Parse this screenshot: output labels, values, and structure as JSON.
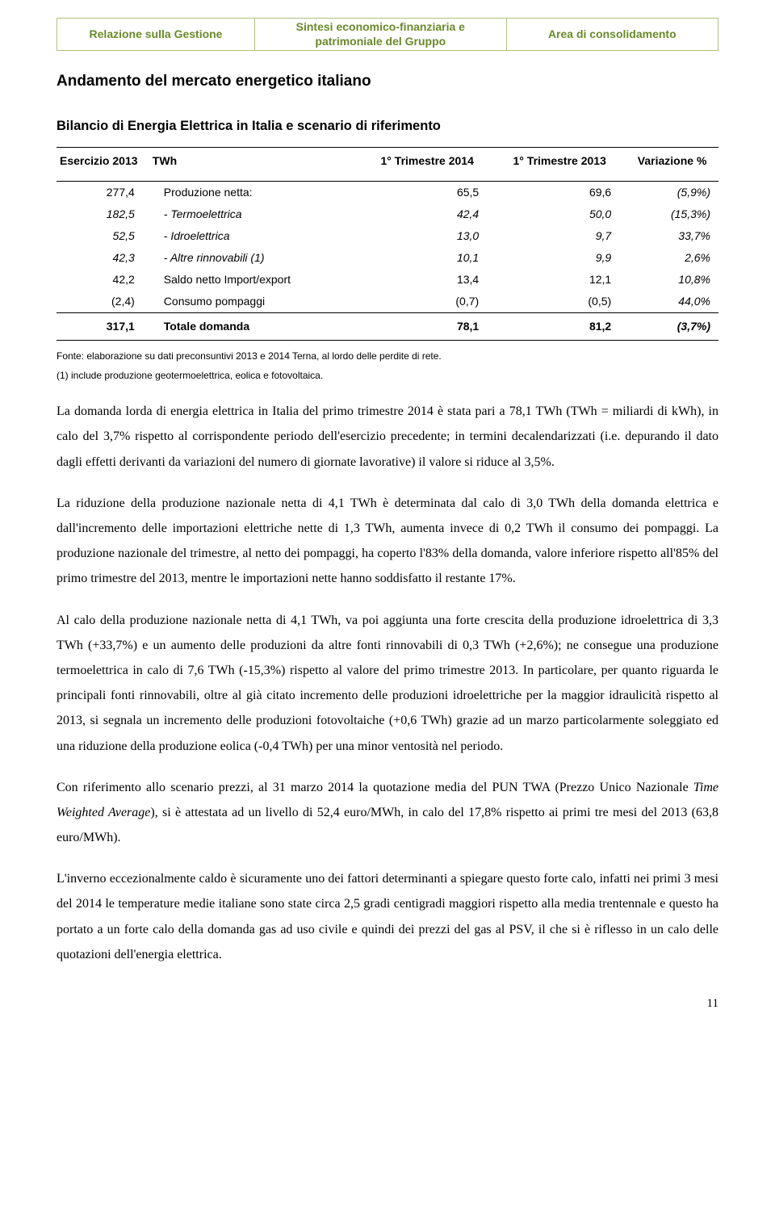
{
  "header": {
    "tabs": [
      "Relazione sulla Gestione",
      "Sintesi economico-finanziaria e patrimoniale del Gruppo",
      "Area di consolidamento"
    ]
  },
  "titles": {
    "section": "Andamento del mercato energetico italiano",
    "sub": "Bilancio di Energia Elettrica in Italia e scenario di riferimento"
  },
  "table": {
    "headers": {
      "c0": "Esercizio 2013",
      "c1": "TWh",
      "c2": "1° Trimestre 2014",
      "c3": "1° Trimestre 2013",
      "c4": "Variazione %"
    },
    "rows": [
      {
        "e": "277,4",
        "label": "Produzione netta:",
        "a": "65,5",
        "b": "69,6",
        "v": "(5,9%)"
      },
      {
        "e": "182,5",
        "label": "- Termoelettrica",
        "a": "42,4",
        "b": "50,0",
        "v": "(15,3%)",
        "italic": true
      },
      {
        "e": "52,5",
        "label": "- Idroelettrica",
        "a": "13,0",
        "b": "9,7",
        "v": "33,7%",
        "italic": true
      },
      {
        "e": "42,3",
        "label": "- Altre rinnovabili (1)",
        "a": "10,1",
        "b": "9,9",
        "v": "2,6%",
        "italic": true
      },
      {
        "e": "42,2",
        "label": "Saldo netto Import/export",
        "a": "13,4",
        "b": "12,1",
        "v": "10,8%"
      },
      {
        "e": "(2,4)",
        "label": "Consumo pompaggi",
        "a": "(0,7)",
        "b": "(0,5)",
        "v": "44,0%"
      }
    ],
    "total": {
      "e": "317,1",
      "label": "Totale domanda",
      "a": "78,1",
      "b": "81,2",
      "v": "(3,7%)"
    }
  },
  "footnotes": {
    "f1": "Fonte: elaborazione su dati preconsuntivi 2013 e 2014 Terna, al lordo delle perdite di rete.",
    "f2": "(1) include produzione geotermoelettrica, eolica e fotovoltaica."
  },
  "paragraphs": {
    "p1": "La domanda lorda di energia elettrica in Italia del primo trimestre 2014 è stata pari a 78,1 TWh (TWh = miliardi di kWh), in calo del 3,7% rispetto al corrispondente periodo dell'esercizio precedente; in termini decalendarizzati (i.e. depurando il dato dagli effetti derivanti da variazioni del numero di giornate lavorative) il valore si riduce al 3,5%.",
    "p2": "La riduzione della produzione nazionale netta di 4,1 TWh è determinata dal calo di 3,0 TWh della domanda elettrica e dall'incremento delle importazioni elettriche nette di 1,3 TWh, aumenta invece di 0,2 TWh il consumo dei pompaggi. La produzione nazionale del trimestre, al netto dei pompaggi, ha coperto l'83% della domanda, valore inferiore rispetto all'85% del primo trimestre del 2013, mentre le importazioni nette hanno soddisfatto il restante 17%.",
    "p3": "Al calo della produzione nazionale netta di 4,1 TWh, va poi aggiunta una forte crescita della produzione idroelettrica di 3,3 TWh (+33,7%) e un aumento delle produzioni da altre fonti rinnovabili di 0,3 TWh (+2,6%); ne consegue una produzione termoelettrica in calo di 7,6 TWh (-15,3%) rispetto al valore del primo trimestre 2013. In particolare, per quanto riguarda le principali fonti rinnovabili, oltre al già citato incremento delle produzioni idroelettriche per la maggior idraulicità rispetto al 2013, si segnala un incremento delle produzioni fotovoltaiche (+0,6 TWh) grazie ad un marzo particolarmente soleggiato ed una riduzione della produzione eolica (-0,4 TWh) per una minor ventosità nel periodo.",
    "p4a": "Con riferimento allo scenario prezzi, al 31 marzo 2014 la quotazione media del PUN TWA (Prezzo Unico Nazionale ",
    "p4i": "Time Weighted Average",
    "p4b": "), si è attestata ad un livello di 52,4 euro/MWh, in calo del 17,8% rispetto ai primi tre mesi del 2013 (63,8 euro/MWh).",
    "p5": "L'inverno eccezionalmente caldo è sicuramente uno dei fattori determinanti a spiegare questo forte calo, infatti nei primi 3 mesi del 2014 le temperature medie italiane sono state circa 2,5 gradi centigradi maggiori rispetto alla media trentennale e questo ha portato a un forte calo della domanda gas ad uso civile e quindi dei prezzi del gas al PSV, il che si è riflesso in un calo delle quotazioni dell'energia elettrica."
  },
  "page_number": "11"
}
